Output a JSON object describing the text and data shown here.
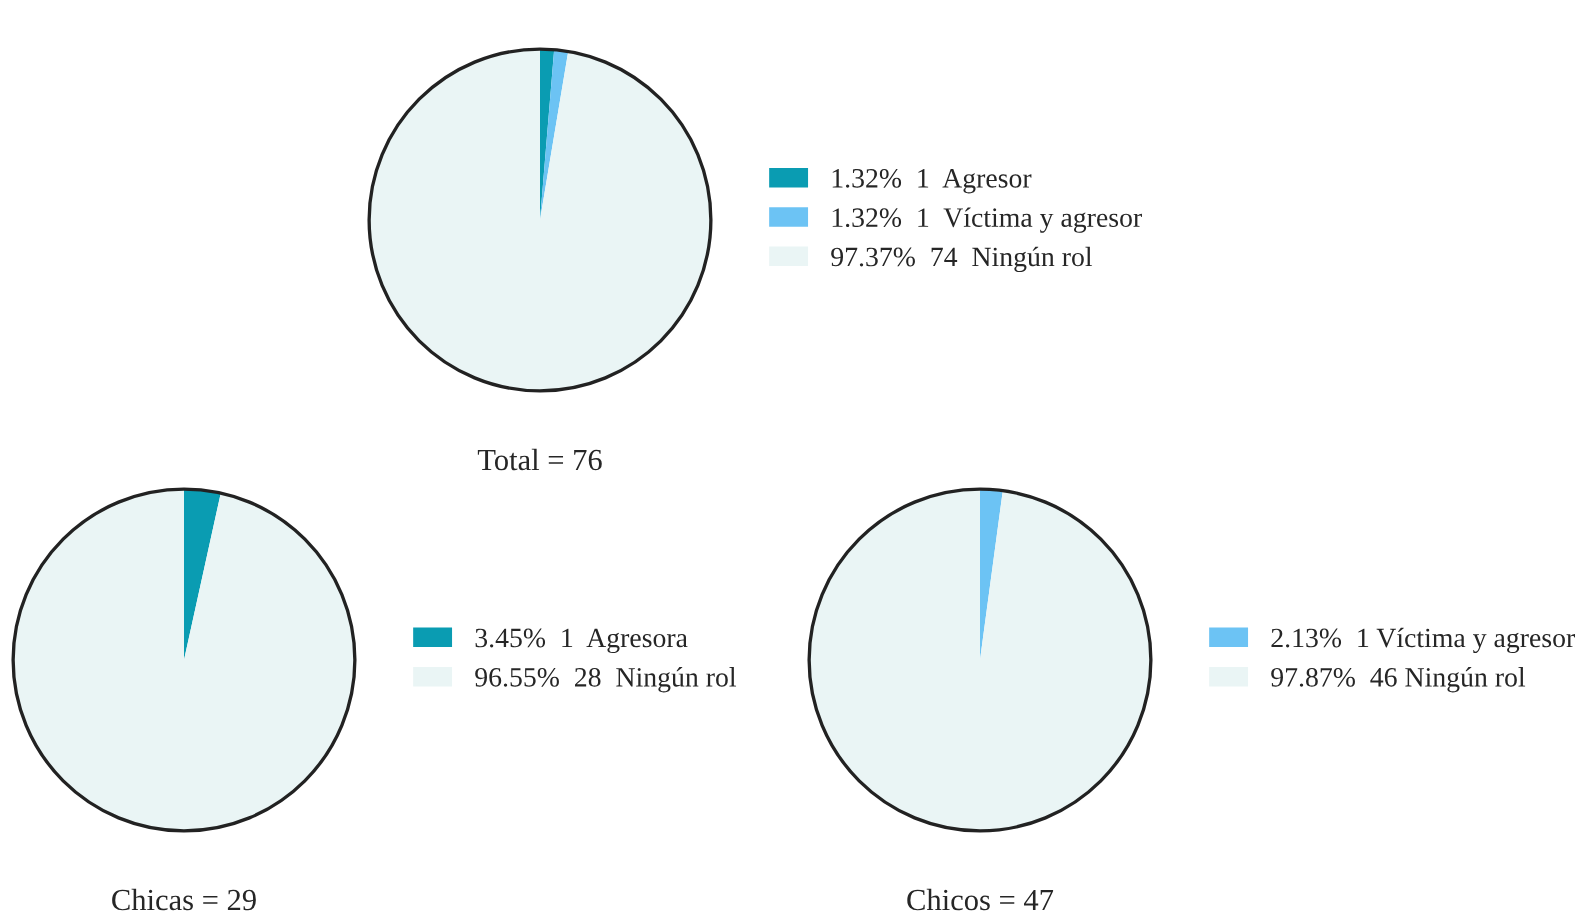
{
  "chart_data": [
    {
      "type": "pie",
      "title": "Total = 76",
      "categories": [
        "1  Agresor",
        "1  Víctima y agresor",
        "74  Ningún rol"
      ],
      "values": [
        1.32,
        1.32,
        97.37
      ],
      "value_labels": [
        "1.32%",
        "1.32%",
        "97.37%"
      ],
      "colors": [
        "#0a9cb2",
        "#6cc3f4",
        "#eaf5f5"
      ],
      "legend": "right"
    },
    {
      "type": "pie",
      "title": "Chicas = 29",
      "categories": [
        "1  Agresora",
        "28  Ningún rol"
      ],
      "values": [
        3.45,
        96.55
      ],
      "value_labels": [
        "3.45%",
        "96.55%"
      ],
      "colors": [
        "#0a9cb2",
        "#eaf5f5"
      ],
      "legend": "right"
    },
    {
      "type": "pie",
      "title": "Chicos = 47",
      "categories": [
        "1 Víctima y agresor",
        "46 Ningún rol"
      ],
      "values": [
        2.13,
        97.87
      ],
      "value_labels": [
        "2.13%",
        "97.87%"
      ],
      "colors": [
        "#6cc3f4",
        "#eaf5f5"
      ],
      "legend": "right"
    }
  ]
}
